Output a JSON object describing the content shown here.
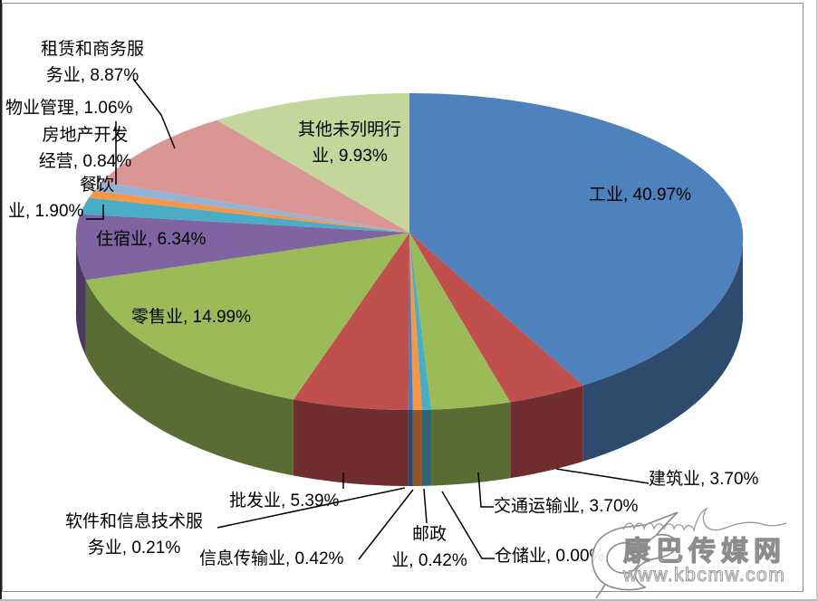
{
  "chart_data": {
    "type": "pie",
    "style": "3d-pie",
    "title": "",
    "legend": "none",
    "labels_format": "category, percent",
    "slices": [
      {
        "id": "industry",
        "label": "工业",
        "value_pct": 40.97,
        "color": "#4F81BD",
        "placement": "inside",
        "lines": [
          "工业, 40.97%"
        ]
      },
      {
        "id": "construction",
        "label": "建筑业",
        "value_pct": 3.7,
        "color": "#C0504D",
        "placement": "outside",
        "lines": [
          "建筑业, 3.70%"
        ]
      },
      {
        "id": "transport",
        "label": "交通运输业",
        "value_pct": 3.7,
        "color": "#9BBB59",
        "placement": "outside",
        "lines": [
          "交通运输业, 3.70%"
        ]
      },
      {
        "id": "warehousing",
        "label": "仓储业",
        "value_pct": 0.0,
        "color": "#8064A2",
        "placement": "outside",
        "lines": [
          "仓储业, 0.00%"
        ]
      },
      {
        "id": "postal",
        "label": "邮政业",
        "value_pct": 0.42,
        "color": "#4BACC6",
        "placement": "outside",
        "lines": [
          "邮政",
          "业, 0.42%"
        ]
      },
      {
        "id": "info-transmission",
        "label": "信息传输业",
        "value_pct": 0.42,
        "color": "#F79646",
        "placement": "outside",
        "lines": [
          "信息传输业, 0.42%"
        ]
      },
      {
        "id": "software",
        "label": "软件和信息技术服务业",
        "value_pct": 0.21,
        "color": "#4A7EBA",
        "placement": "outside",
        "lines": [
          "软件和信息技术服",
          "务业, 0.21%"
        ]
      },
      {
        "id": "wholesale",
        "label": "批发业",
        "value_pct": 5.39,
        "color": "#C0504D",
        "placement": "outside",
        "lines": [
          "批发业, 5.39%"
        ]
      },
      {
        "id": "retail",
        "label": "零售业",
        "value_pct": 14.99,
        "color": "#9BBB59",
        "placement": "inside",
        "lines": [
          "零售业, 14.99%"
        ]
      },
      {
        "id": "lodging",
        "label": "住宿业",
        "value_pct": 6.34,
        "color": "#8064A2",
        "placement": "inside",
        "lines": [
          "住宿业, 6.34%"
        ]
      },
      {
        "id": "catering",
        "label": "餐饮业",
        "value_pct": 1.9,
        "color": "#4BACC6",
        "placement": "outside",
        "lines": [
          "餐饮",
          "业, 1.90%"
        ]
      },
      {
        "id": "realestate",
        "label": "房地产开发经营",
        "value_pct": 0.84,
        "color": "#F79646",
        "placement": "outside",
        "lines": [
          "房地产开发",
          "经营, 0.84%"
        ]
      },
      {
        "id": "property-mgmt",
        "label": "物业管理",
        "value_pct": 1.06,
        "color": "#95B3D7",
        "placement": "outside",
        "lines": [
          "物业管理, 1.06%"
        ]
      },
      {
        "id": "leasing",
        "label": "租赁和商务服务业",
        "value_pct": 8.87,
        "color": "#D99694",
        "placement": "outside",
        "lines": [
          "租赁和商务服",
          "务业, 8.87%"
        ]
      },
      {
        "id": "other",
        "label": "其他未列明行业",
        "value_pct": 9.93,
        "color": "#C3D69B",
        "placement": "inside",
        "lines": [
          "其他未列明行",
          "业, 9.93%"
        ]
      }
    ]
  },
  "watermark": {
    "site_name": "康巴传媒网",
    "site_url": "www.kbcmw.com",
    "logo": "leaf-calligraphy"
  },
  "colors": {
    "background": "#FFFFFF",
    "frame_border": "#8F8F8F",
    "leader_line": "#000000",
    "label_text": "#000000",
    "watermark_gray": "#8C8C8C"
  }
}
